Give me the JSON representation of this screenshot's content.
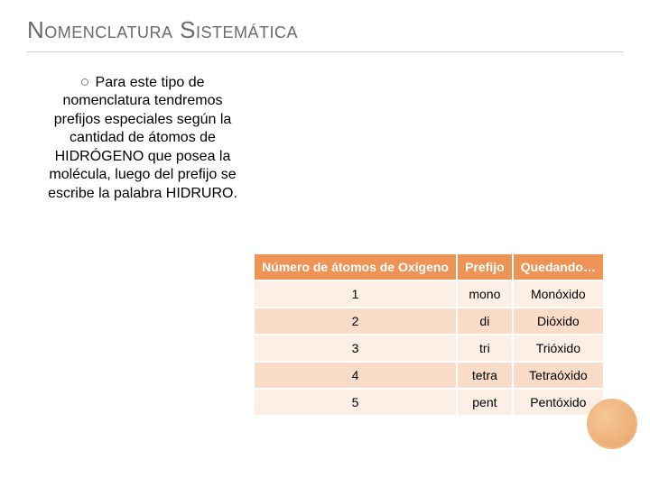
{
  "title": "Nomenclatura Sistemática",
  "paragraph": "Para este tipo de nomenclatura tendremos prefijos especiales según la cantidad de átomos de HIDRÓGENO que posea la molécula, luego del prefijo se escribe la palabra HIDRURO.",
  "table": {
    "type": "table",
    "header_bg": "#ed9356",
    "header_color": "#ffffff",
    "row_colors": [
      "#fdefe6",
      "#f8dcc8"
    ],
    "border_color": "#ffffff",
    "font_size": 14,
    "columns": [
      "Número de átomos de Oxígeno",
      "Prefijo",
      "Quedando…"
    ],
    "rows": [
      [
        "1",
        "mono",
        "Monóxido"
      ],
      [
        "2",
        "di",
        "Dióxido"
      ],
      [
        "3",
        "tri",
        "Trióxido"
      ],
      [
        "4",
        "tetra",
        "Tetraóxido"
      ],
      [
        "5",
        "pent",
        "Pentóxido"
      ]
    ]
  },
  "decoration": {
    "circle_gradient_from": "#f6c79a",
    "circle_gradient_to": "#e9a565",
    "circle_border": "#f2b886"
  }
}
